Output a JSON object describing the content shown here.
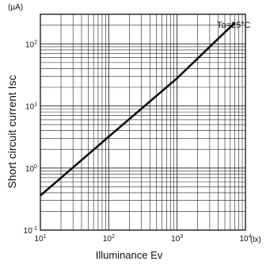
{
  "chart_data": {
    "type": "line",
    "xlabel": "Illuminance  Ev",
    "ylabel": "Short circuit current   Isc",
    "x_unit": "(lx)",
    "y_unit": "(µA)",
    "x_scale": "log",
    "y_scale": "log",
    "xlim": [
      10,
      10000
    ],
    "ylim": [
      0.1,
      300
    ],
    "grid": true,
    "x_ticks": [
      {
        "value": 10,
        "base": "10",
        "exp": "1"
      },
      {
        "value": 100,
        "base": "10",
        "exp": "2"
      },
      {
        "value": 1000,
        "base": "10",
        "exp": "3"
      },
      {
        "value": 10000,
        "base": "10",
        "exp": "4"
      }
    ],
    "y_ticks": [
      {
        "value": 0.1,
        "base": "10",
        "exp": "-1"
      },
      {
        "value": 1,
        "base": "10",
        "exp": "0"
      },
      {
        "value": 10,
        "base": "10",
        "exp": "1"
      },
      {
        "value": 100,
        "base": "10",
        "exp": "2"
      }
    ],
    "annotation": "Ta=25°C",
    "series": [
      {
        "x": [
          10,
          100,
          1000,
          7000
        ],
        "y": [
          0.36,
          3.2,
          28,
          220
        ]
      }
    ]
  }
}
